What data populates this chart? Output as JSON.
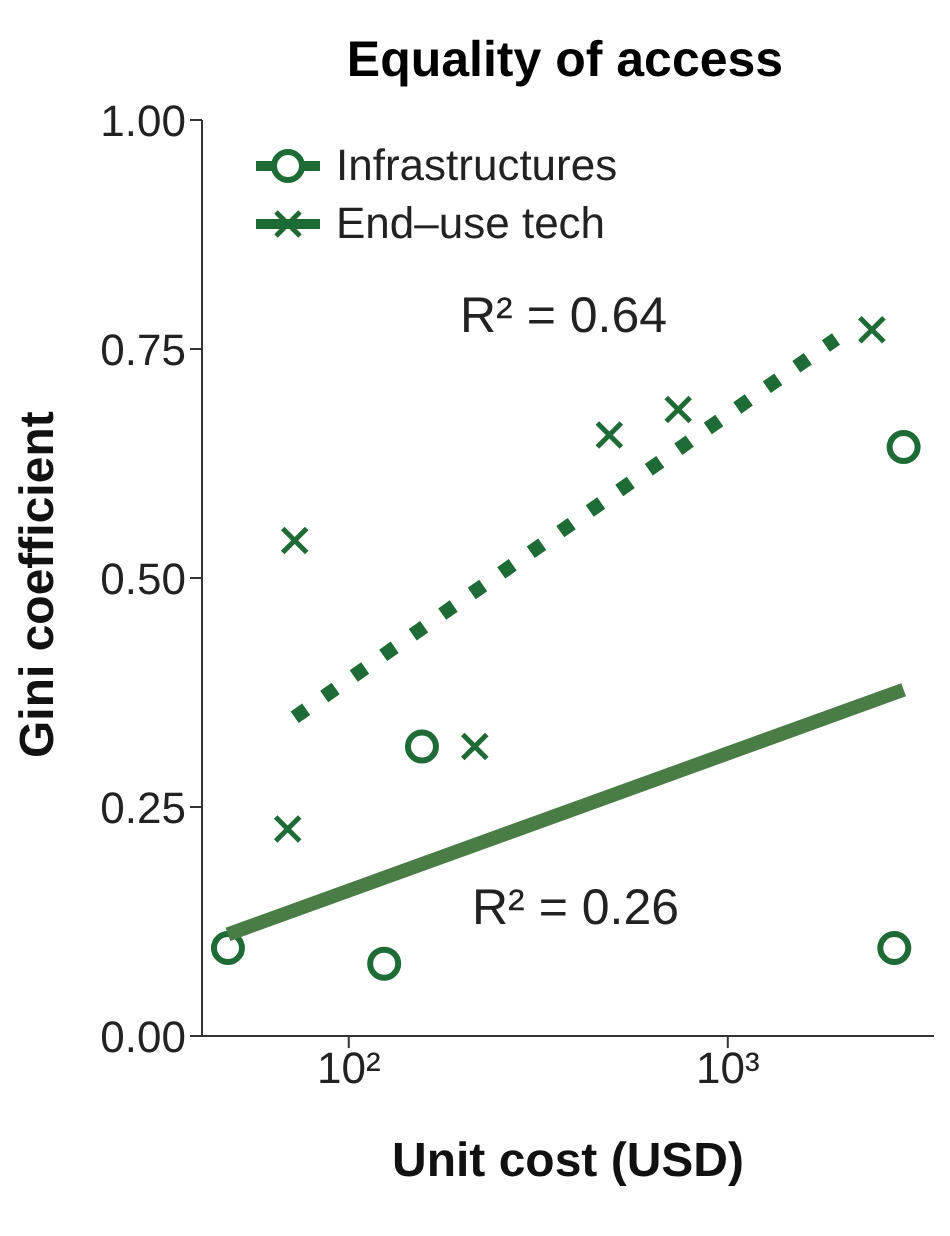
{
  "chart_data": {
    "type": "scatter",
    "title": "Equality of access",
    "xlabel": "Unit cost (USD)",
    "ylabel": "Gini coefficient",
    "log": "x",
    "xlim": [
      41,
      3500
    ],
    "xticks": [
      {
        "value": 100,
        "label": "10²"
      },
      {
        "value": 1000,
        "label": "10³"
      }
    ],
    "ylim": [
      0,
      1
    ],
    "yticks": [
      {
        "value": 0,
        "label": "0.00"
      },
      {
        "value": 0.25,
        "label": "0.25"
      },
      {
        "value": 0.5,
        "label": "0.50"
      },
      {
        "value": 0.75,
        "label": "0.75"
      },
      {
        "value": 1,
        "label": "1.00"
      }
    ],
    "legend": "top left",
    "series": [
      {
        "name": "Infrastructures",
        "type": "scatter",
        "marker": "circle",
        "color": "#1e6b35",
        "x": [
          48,
          124,
          156,
          2910,
          2750
        ],
        "values": [
          0.096,
          0.079,
          0.316,
          0.643,
          0.096
        ]
      },
      {
        "type": "line",
        "line_style": "solid",
        "color": "#4a7c45",
        "x": [
          48,
          2910
        ],
        "values": [
          0.111,
          0.378
        ]
      },
      {
        "name": "End–use tech",
        "type": "scatter",
        "marker": "cross",
        "color": "#1e6b35",
        "x": [
          69,
          72,
          215,
          487,
          740,
          2400
        ],
        "values": [
          0.226,
          0.541,
          0.316,
          0.656,
          0.684,
          0.771
        ]
      },
      {
        "type": "line",
        "line_style": "dotted",
        "color": "#1e6b35",
        "x": [
          72,
          1930
        ],
        "values": [
          0.348,
          0.761
        ]
      }
    ],
    "annotations": [
      "R² = 0.64",
      "R² = 0.26"
    ]
  }
}
